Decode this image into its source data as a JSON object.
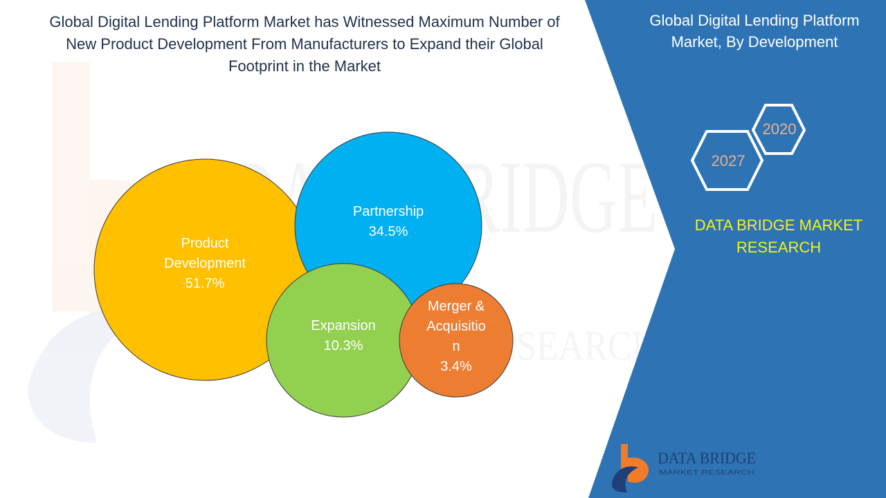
{
  "header": {
    "title_lines": [
      "Global Digital Lending Platform Market has Witnessed Maximum Number of",
      "New Product Development From Manufacturers to Expand their Global",
      "Footprint in the Market"
    ]
  },
  "side_panel": {
    "title_lines": [
      "Global Digital Lending Platform",
      "Market, By Development"
    ],
    "year_badges": [
      "2020",
      "2027"
    ],
    "brand_lines": [
      "DATA BRIDGE MARKET",
      "RESEARCH"
    ],
    "logo_text": "DATA BRIDGE",
    "logo_subtext": "MARKET RESEARCH"
  },
  "watermark": {
    "lines": [
      "DATA BRIDGE",
      "MARKET RESEARCH"
    ]
  },
  "colors": {
    "panel_blue": "#2e74b5",
    "title_text": "#1f2f4a",
    "brand_yellow": "#f2f21a",
    "badge_text": "#e8b090",
    "logo_orange": "#f07b2a",
    "logo_blue": "#2e62a8"
  },
  "chart_data": {
    "type": "bubble",
    "categories": [
      "Product Development",
      "Partnership",
      "Expansion",
      "Merger & Acquisition"
    ],
    "label_lines": [
      [
        "Product",
        "Development"
      ],
      [
        "Partnership"
      ],
      [
        "Expansion"
      ],
      [
        "Merger &",
        "Acquisitio",
        "n"
      ]
    ],
    "value_labels": [
      "51.7%",
      "34.5%",
      "10.3%",
      "3.4%"
    ],
    "values": [
      51.7,
      34.5,
      10.3,
      3.4
    ],
    "unit": "%",
    "colors": [
      "#ffc000",
      "#00b0f0",
      "#92d050",
      "#ed7d31"
    ]
  }
}
